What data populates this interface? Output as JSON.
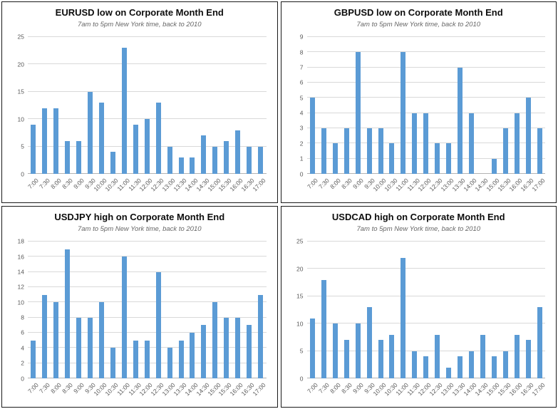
{
  "colors": {
    "bar": "#5B9BD5",
    "gridline": "#D9D9D9",
    "axis_line": "#B3B3B3",
    "tick_text": "#595959",
    "title_text": "#0D0D0D",
    "subtitle_text": "#666666",
    "panel_border": "#1A1A1A",
    "background": "#FFFFFF"
  },
  "chart_data": [
    {
      "type": "bar",
      "title": "EURUSD low on Corporate Month End",
      "subtitle": "7am to 5pm New York time, back to 2010",
      "categories": [
        "7:00",
        "7:30",
        "8:00",
        "8:30",
        "9:00",
        "9:30",
        "10:00",
        "10:30",
        "11:00",
        "11:30",
        "12:00",
        "12:30",
        "13:00",
        "13:30",
        "14:00",
        "14:30",
        "15:00",
        "15:30",
        "16:00",
        "16:30",
        "17:00"
      ],
      "values": [
        9,
        12,
        12,
        6,
        6,
        15,
        13,
        4,
        23,
        9,
        10,
        13,
        5,
        3,
        3,
        7,
        5,
        6,
        8,
        5,
        5
      ],
      "ylim": [
        0,
        25
      ],
      "yticks": [
        0,
        5,
        10,
        15,
        20,
        25
      ],
      "xlabel": "",
      "ylabel": "",
      "grid": true,
      "legend": "none"
    },
    {
      "type": "bar",
      "title": "GBPUSD low on Corporate Month End",
      "subtitle": "7am to 5pm New York time, back to 2010",
      "categories": [
        "7:00",
        "7:30",
        "8:00",
        "8:30",
        "9:00",
        "9:30",
        "10:00",
        "10:30",
        "11:00",
        "11:30",
        "12:00",
        "12:30",
        "13:00",
        "13:30",
        "14:00",
        "14:30",
        "15:00",
        "15:30",
        "16:00",
        "16:30",
        "17:00"
      ],
      "values": [
        5,
        3,
        2,
        3,
        8,
        3,
        3,
        2,
        8,
        4,
        4,
        2,
        2,
        7,
        4,
        0,
        1,
        3,
        4,
        5,
        3
      ],
      "ylim": [
        0,
        9
      ],
      "yticks": [
        0,
        1,
        2,
        3,
        4,
        5,
        6,
        7,
        8,
        9
      ],
      "xlabel": "",
      "ylabel": "",
      "grid": true,
      "legend": "none"
    },
    {
      "type": "bar",
      "title": "USDJPY high on Corporate Month End",
      "subtitle": "7am to 5pm New York time, back to 2010",
      "categories": [
        "7:00",
        "7:30",
        "8:00",
        "8:30",
        "9:00",
        "9:30",
        "10:00",
        "10:30",
        "11:00",
        "11:30",
        "12:00",
        "12:30",
        "13:00",
        "13:30",
        "14:00",
        "14:30",
        "15:00",
        "15:30",
        "16:00",
        "16:30",
        "17:00"
      ],
      "values": [
        5,
        11,
        10,
        17,
        8,
        8,
        10,
        4,
        16,
        5,
        5,
        14,
        4,
        5,
        6,
        7,
        10,
        8,
        8,
        7,
        11
      ],
      "ylim": [
        0,
        18
      ],
      "yticks": [
        0,
        2,
        4,
        6,
        8,
        10,
        12,
        14,
        16,
        18
      ],
      "xlabel": "",
      "ylabel": "",
      "grid": true,
      "legend": "none"
    },
    {
      "type": "bar",
      "title": "USDCAD high on Corporate Month End",
      "subtitle": "7am to 5pm New York time, back to 2010",
      "categories": [
        "7:00",
        "7:30",
        "8:00",
        "8:30",
        "9:00",
        "9:30",
        "10:00",
        "10:30",
        "11:00",
        "11:30",
        "12:00",
        "12:30",
        "13:00",
        "13:30",
        "14:00",
        "14:30",
        "15:00",
        "15:30",
        "16:00",
        "16:30",
        "17:00"
      ],
      "values": [
        11,
        18,
        10,
        7,
        10,
        13,
        7,
        8,
        22,
        5,
        4,
        8,
        2,
        4,
        5,
        8,
        4,
        5,
        8,
        7,
        13
      ],
      "ylim": [
        0,
        25
      ],
      "yticks": [
        0,
        5,
        10,
        15,
        20,
        25
      ],
      "xlabel": "",
      "ylabel": "",
      "grid": true,
      "legend": "none"
    }
  ]
}
